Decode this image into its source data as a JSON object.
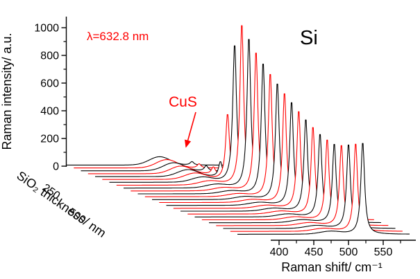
{
  "figure": {
    "background": "#ffffff"
  },
  "chart_data": {
    "type": "line",
    "subtype": "3d-waterfall-raman-spectra",
    "title": "",
    "xlabel": "Raman shift/ cm⁻¹",
    "ylabel": "Raman intensity/ a.u.",
    "zlabel": "SiO₂ thickness/ nm",
    "x_ticks": [
      400,
      450,
      500,
      550
    ],
    "x_minor_ticks": [
      425,
      475,
      525,
      575
    ],
    "y_ticks": [
      0,
      200,
      400,
      600,
      800,
      1000
    ],
    "y_minor_ticks": [
      100,
      300,
      500,
      700,
      900
    ],
    "z_ticks": [
      250,
      500
    ],
    "x_range": [
      340,
      588
    ],
    "y_axis_range": [
      0,
      1000
    ],
    "z_range_nm": [
      0,
      600
    ],
    "n_spectra": 25,
    "legend": "none",
    "grid": false,
    "annotations": {
      "laser": {
        "text": "λ=632.8 nm",
        "color": "#ff0000"
      },
      "cus": {
        "text": "CuS",
        "color": "#ff0000"
      },
      "si": {
        "text": "Si",
        "color": "#000000"
      }
    },
    "colors": {
      "series_a": "#000000",
      "series_b": "#ff0000",
      "axis": "#000000"
    },
    "peaks": {
      "baseline": 8,
      "si_center": 520.5,
      "si_gamma": 3.2,
      "cus_center": 474,
      "cus_sigma": 15
    },
    "series": [
      {
        "color": "#000000",
        "si": 25,
        "cus": 60
      },
      {
        "color": "#ff0000",
        "si": 30,
        "cus": 60
      },
      {
        "color": "#000000",
        "si": 38,
        "cus": 58
      },
      {
        "color": "#ff0000",
        "si": 50,
        "cus": 55
      },
      {
        "color": "#000000",
        "si": 110,
        "cus": 50
      },
      {
        "color": "#ff0000",
        "si": 480,
        "cus": 45
      },
      {
        "color": "#000000",
        "si": 1010,
        "cus": 35
      },
      {
        "color": "#ff0000",
        "si": 1180,
        "cus": 28
      },
      {
        "color": "#000000",
        "si": 1100,
        "cus": 25
      },
      {
        "color": "#ff0000",
        "si": 1020,
        "cus": 22
      },
      {
        "color": "#000000",
        "si": 960,
        "cus": 20
      },
      {
        "color": "#ff0000",
        "si": 905,
        "cus": 20
      },
      {
        "color": "#000000",
        "si": 855,
        "cus": 20
      },
      {
        "color": "#ff0000",
        "si": 805,
        "cus": 20
      },
      {
        "color": "#000000",
        "si": 760,
        "cus": 20
      },
      {
        "color": "#ff0000",
        "si": 715,
        "cus": 20
      },
      {
        "color": "#000000",
        "si": 675,
        "cus": 20
      },
      {
        "color": "#ff0000",
        "si": 640,
        "cus": 20
      },
      {
        "color": "#000000",
        "si": 610,
        "cus": 20
      },
      {
        "color": "#ff0000",
        "si": 590,
        "cus": 20
      },
      {
        "color": "#000000",
        "si": 580,
        "cus": 20
      },
      {
        "color": "#ff0000",
        "si": 592,
        "cus": 20
      },
      {
        "color": "#000000",
        "si": 618,
        "cus": 20
      },
      {
        "color": "#ff0000",
        "si": 645,
        "cus": 20
      },
      {
        "color": "#000000",
        "si": 672,
        "cus": 20
      }
    ]
  }
}
